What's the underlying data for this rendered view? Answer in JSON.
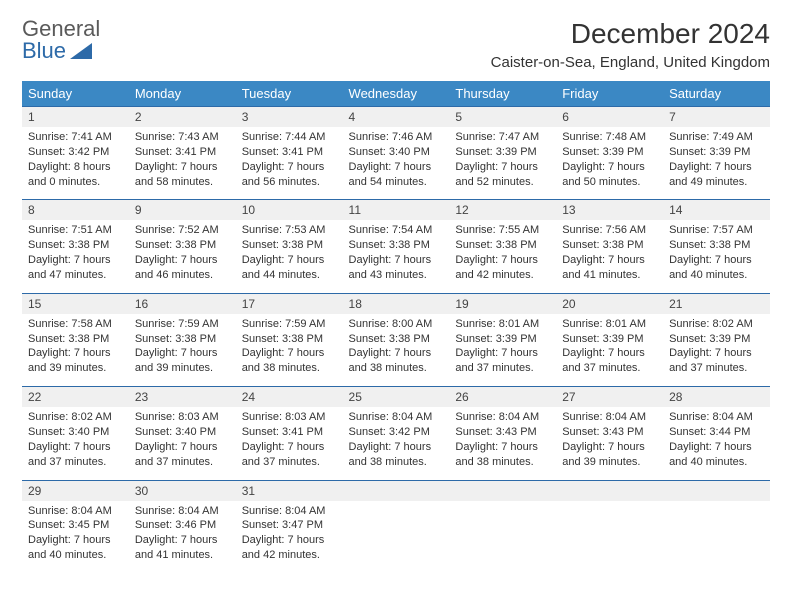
{
  "brand": {
    "line1": "General",
    "line2": "Blue"
  },
  "title": "December 2024",
  "subtitle": "Caister-on-Sea, England, United Kingdom",
  "colors": {
    "header_bg": "#3b88c4",
    "header_text": "#ffffff",
    "daynum_bg": "#f0f0f0",
    "rule": "#2d6aa8",
    "text": "#333333",
    "brand_gray": "#5a5a5a",
    "brand_blue": "#2d6aa8"
  },
  "day_names": [
    "Sunday",
    "Monday",
    "Tuesday",
    "Wednesday",
    "Thursday",
    "Friday",
    "Saturday"
  ],
  "weeks": [
    {
      "nums": [
        "1",
        "2",
        "3",
        "4",
        "5",
        "6",
        "7"
      ],
      "cells": [
        {
          "sunrise": "Sunrise: 7:41 AM",
          "sunset": "Sunset: 3:42 PM",
          "d1": "Daylight: 8 hours",
          "d2": "and 0 minutes."
        },
        {
          "sunrise": "Sunrise: 7:43 AM",
          "sunset": "Sunset: 3:41 PM",
          "d1": "Daylight: 7 hours",
          "d2": "and 58 minutes."
        },
        {
          "sunrise": "Sunrise: 7:44 AM",
          "sunset": "Sunset: 3:41 PM",
          "d1": "Daylight: 7 hours",
          "d2": "and 56 minutes."
        },
        {
          "sunrise": "Sunrise: 7:46 AM",
          "sunset": "Sunset: 3:40 PM",
          "d1": "Daylight: 7 hours",
          "d2": "and 54 minutes."
        },
        {
          "sunrise": "Sunrise: 7:47 AM",
          "sunset": "Sunset: 3:39 PM",
          "d1": "Daylight: 7 hours",
          "d2": "and 52 minutes."
        },
        {
          "sunrise": "Sunrise: 7:48 AM",
          "sunset": "Sunset: 3:39 PM",
          "d1": "Daylight: 7 hours",
          "d2": "and 50 minutes."
        },
        {
          "sunrise": "Sunrise: 7:49 AM",
          "sunset": "Sunset: 3:39 PM",
          "d1": "Daylight: 7 hours",
          "d2": "and 49 minutes."
        }
      ]
    },
    {
      "nums": [
        "8",
        "9",
        "10",
        "11",
        "12",
        "13",
        "14"
      ],
      "cells": [
        {
          "sunrise": "Sunrise: 7:51 AM",
          "sunset": "Sunset: 3:38 PM",
          "d1": "Daylight: 7 hours",
          "d2": "and 47 minutes."
        },
        {
          "sunrise": "Sunrise: 7:52 AM",
          "sunset": "Sunset: 3:38 PM",
          "d1": "Daylight: 7 hours",
          "d2": "and 46 minutes."
        },
        {
          "sunrise": "Sunrise: 7:53 AM",
          "sunset": "Sunset: 3:38 PM",
          "d1": "Daylight: 7 hours",
          "d2": "and 44 minutes."
        },
        {
          "sunrise": "Sunrise: 7:54 AM",
          "sunset": "Sunset: 3:38 PM",
          "d1": "Daylight: 7 hours",
          "d2": "and 43 minutes."
        },
        {
          "sunrise": "Sunrise: 7:55 AM",
          "sunset": "Sunset: 3:38 PM",
          "d1": "Daylight: 7 hours",
          "d2": "and 42 minutes."
        },
        {
          "sunrise": "Sunrise: 7:56 AM",
          "sunset": "Sunset: 3:38 PM",
          "d1": "Daylight: 7 hours",
          "d2": "and 41 minutes."
        },
        {
          "sunrise": "Sunrise: 7:57 AM",
          "sunset": "Sunset: 3:38 PM",
          "d1": "Daylight: 7 hours",
          "d2": "and 40 minutes."
        }
      ]
    },
    {
      "nums": [
        "15",
        "16",
        "17",
        "18",
        "19",
        "20",
        "21"
      ],
      "cells": [
        {
          "sunrise": "Sunrise: 7:58 AM",
          "sunset": "Sunset: 3:38 PM",
          "d1": "Daylight: 7 hours",
          "d2": "and 39 minutes."
        },
        {
          "sunrise": "Sunrise: 7:59 AM",
          "sunset": "Sunset: 3:38 PM",
          "d1": "Daylight: 7 hours",
          "d2": "and 39 minutes."
        },
        {
          "sunrise": "Sunrise: 7:59 AM",
          "sunset": "Sunset: 3:38 PM",
          "d1": "Daylight: 7 hours",
          "d2": "and 38 minutes."
        },
        {
          "sunrise": "Sunrise: 8:00 AM",
          "sunset": "Sunset: 3:38 PM",
          "d1": "Daylight: 7 hours",
          "d2": "and 38 minutes."
        },
        {
          "sunrise": "Sunrise: 8:01 AM",
          "sunset": "Sunset: 3:39 PM",
          "d1": "Daylight: 7 hours",
          "d2": "and 37 minutes."
        },
        {
          "sunrise": "Sunrise: 8:01 AM",
          "sunset": "Sunset: 3:39 PM",
          "d1": "Daylight: 7 hours",
          "d2": "and 37 minutes."
        },
        {
          "sunrise": "Sunrise: 8:02 AM",
          "sunset": "Sunset: 3:39 PM",
          "d1": "Daylight: 7 hours",
          "d2": "and 37 minutes."
        }
      ]
    },
    {
      "nums": [
        "22",
        "23",
        "24",
        "25",
        "26",
        "27",
        "28"
      ],
      "cells": [
        {
          "sunrise": "Sunrise: 8:02 AM",
          "sunset": "Sunset: 3:40 PM",
          "d1": "Daylight: 7 hours",
          "d2": "and 37 minutes."
        },
        {
          "sunrise": "Sunrise: 8:03 AM",
          "sunset": "Sunset: 3:40 PM",
          "d1": "Daylight: 7 hours",
          "d2": "and 37 minutes."
        },
        {
          "sunrise": "Sunrise: 8:03 AM",
          "sunset": "Sunset: 3:41 PM",
          "d1": "Daylight: 7 hours",
          "d2": "and 37 minutes."
        },
        {
          "sunrise": "Sunrise: 8:04 AM",
          "sunset": "Sunset: 3:42 PM",
          "d1": "Daylight: 7 hours",
          "d2": "and 38 minutes."
        },
        {
          "sunrise": "Sunrise: 8:04 AM",
          "sunset": "Sunset: 3:43 PM",
          "d1": "Daylight: 7 hours",
          "d2": "and 38 minutes."
        },
        {
          "sunrise": "Sunrise: 8:04 AM",
          "sunset": "Sunset: 3:43 PM",
          "d1": "Daylight: 7 hours",
          "d2": "and 39 minutes."
        },
        {
          "sunrise": "Sunrise: 8:04 AM",
          "sunset": "Sunset: 3:44 PM",
          "d1": "Daylight: 7 hours",
          "d2": "and 40 minutes."
        }
      ]
    },
    {
      "nums": [
        "29",
        "30",
        "31",
        "",
        "",
        "",
        ""
      ],
      "cells": [
        {
          "sunrise": "Sunrise: 8:04 AM",
          "sunset": "Sunset: 3:45 PM",
          "d1": "Daylight: 7 hours",
          "d2": "and 40 minutes."
        },
        {
          "sunrise": "Sunrise: 8:04 AM",
          "sunset": "Sunset: 3:46 PM",
          "d1": "Daylight: 7 hours",
          "d2": "and 41 minutes."
        },
        {
          "sunrise": "Sunrise: 8:04 AM",
          "sunset": "Sunset: 3:47 PM",
          "d1": "Daylight: 7 hours",
          "d2": "and 42 minutes."
        },
        {
          "sunrise": "",
          "sunset": "",
          "d1": "",
          "d2": ""
        },
        {
          "sunrise": "",
          "sunset": "",
          "d1": "",
          "d2": ""
        },
        {
          "sunrise": "",
          "sunset": "",
          "d1": "",
          "d2": ""
        },
        {
          "sunrise": "",
          "sunset": "",
          "d1": "",
          "d2": ""
        }
      ]
    }
  ]
}
